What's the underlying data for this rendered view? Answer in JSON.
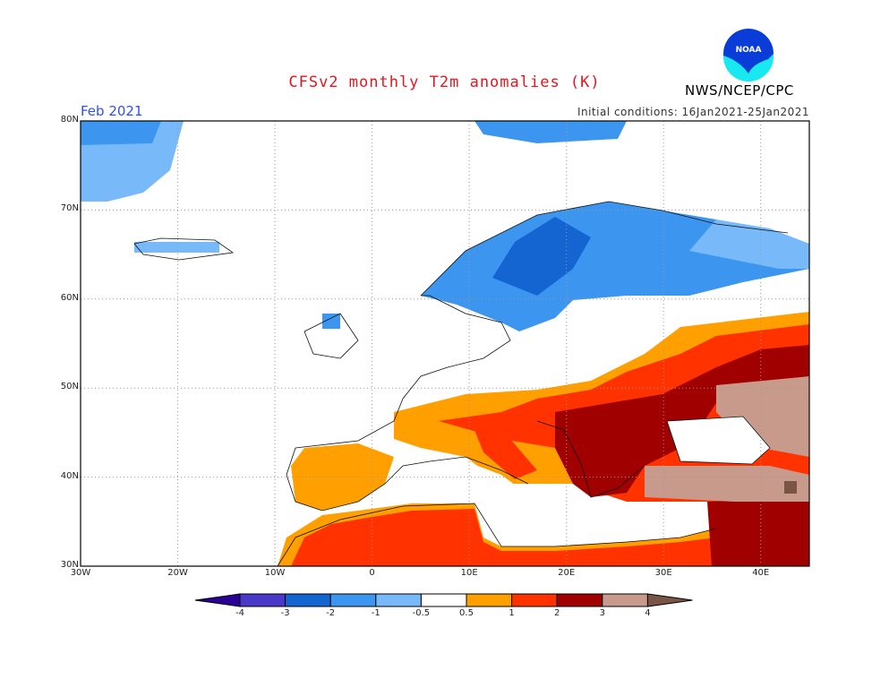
{
  "title": "CFSv2 monthly T2m anomalies (K)",
  "month_label": "Feb 2021",
  "initial_conditions": "Initial conditions: 16Jan2021-25Jan2021",
  "organization": "NWS/NCEP/CPC",
  "logo_text": "NOAA",
  "map": {
    "lon_range": [
      -30,
      45
    ],
    "lat_range": [
      30,
      80
    ],
    "grid": true,
    "lon_ticks": [
      "30W",
      "20W",
      "10W",
      "0",
      "10E",
      "20E",
      "30E",
      "40E"
    ],
    "lat_ticks": [
      "30N",
      "40N",
      "50N",
      "60N",
      "70N",
      "80N"
    ]
  },
  "colorbar": {
    "labels": [
      "-4",
      "-3",
      "-2",
      "-1",
      "-0.5",
      "0.5",
      "1",
      "2",
      "3",
      "4"
    ],
    "colors": [
      "#2a0096",
      "#4a38c8",
      "#1464d2",
      "#3c96f0",
      "#78b9fa",
      "#ffffff",
      "#ffa000",
      "#ff3200",
      "#a00000",
      "#c89a8c",
      "#7a5546"
    ]
  }
}
